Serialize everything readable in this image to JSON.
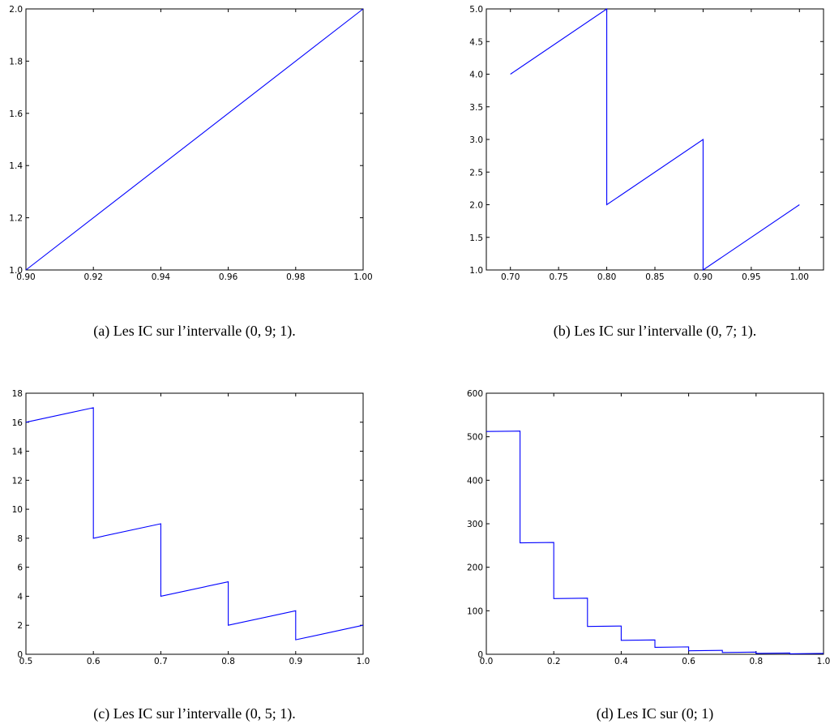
{
  "chart_data": [
    {
      "type": "line",
      "xlim": [
        0.9,
        1.0
      ],
      "ylim": [
        1.0,
        2.0
      ],
      "xticks": [
        "0.90",
        "0.92",
        "0.94",
        "0.96",
        "0.98",
        "1.00"
      ],
      "yticks": [
        "1.0",
        "1.2",
        "1.4",
        "1.6",
        "1.8",
        "2.0"
      ],
      "x": [
        0.9,
        1.0
      ],
      "y": [
        1.0,
        2.0
      ],
      "caption": "(a)  Les IC sur l’intervalle (0, 9; 1)."
    },
    {
      "type": "line",
      "xlim": [
        0.675,
        1.025
      ],
      "ylim": [
        1.0,
        5.0
      ],
      "xticks": [
        "0.70",
        "0.75",
        "0.80",
        "0.85",
        "0.90",
        "0.95",
        "1.00"
      ],
      "yticks": [
        "1.0",
        "1.5",
        "2.0",
        "2.5",
        "3.0",
        "3.5",
        "4.0",
        "4.5",
        "5.0"
      ],
      "x": [
        0.7,
        0.8,
        0.8,
        0.9,
        0.9,
        1.0
      ],
      "y": [
        4.0,
        5.0,
        2.0,
        3.0,
        1.0,
        2.0
      ],
      "caption": "(b)  Les IC sur l’intervalle (0, 7; 1)."
    },
    {
      "type": "line",
      "xlim": [
        0.5,
        1.0
      ],
      "ylim": [
        0,
        18
      ],
      "xticks": [
        "0.5",
        "0.6",
        "0.7",
        "0.8",
        "0.9",
        "1.0"
      ],
      "yticks": [
        "0",
        "2",
        "4",
        "6",
        "8",
        "10",
        "12",
        "14",
        "16",
        "18"
      ],
      "x": [
        0.5,
        0.6,
        0.6,
        0.7,
        0.7,
        0.8,
        0.8,
        0.9,
        0.9,
        1.0
      ],
      "y": [
        16,
        17,
        8,
        9,
        4,
        5,
        2,
        3,
        1,
        2
      ],
      "caption": "(c)  Les IC sur l’intervalle (0, 5; 1)."
    },
    {
      "type": "line",
      "xlim": [
        0.0,
        1.0
      ],
      "ylim": [
        0,
        600
      ],
      "xticks": [
        "0.0",
        "0.2",
        "0.4",
        "0.6",
        "0.8",
        "1.0"
      ],
      "yticks": [
        "0",
        "100",
        "200",
        "300",
        "400",
        "500",
        "600"
      ],
      "x": [
        0.0,
        0.1,
        0.1,
        0.2,
        0.2,
        0.3,
        0.3,
        0.4,
        0.4,
        0.5,
        0.5,
        0.6,
        0.6,
        0.7,
        0.7,
        0.8,
        0.8,
        0.9,
        0.9,
        1.0
      ],
      "y": [
        512,
        513,
        256,
        257,
        128,
        129,
        64,
        65,
        32,
        33,
        16,
        17,
        8,
        9,
        4,
        5,
        2,
        3,
        1,
        2
      ],
      "caption": "(d)  Les IC sur (0; 1)"
    }
  ]
}
